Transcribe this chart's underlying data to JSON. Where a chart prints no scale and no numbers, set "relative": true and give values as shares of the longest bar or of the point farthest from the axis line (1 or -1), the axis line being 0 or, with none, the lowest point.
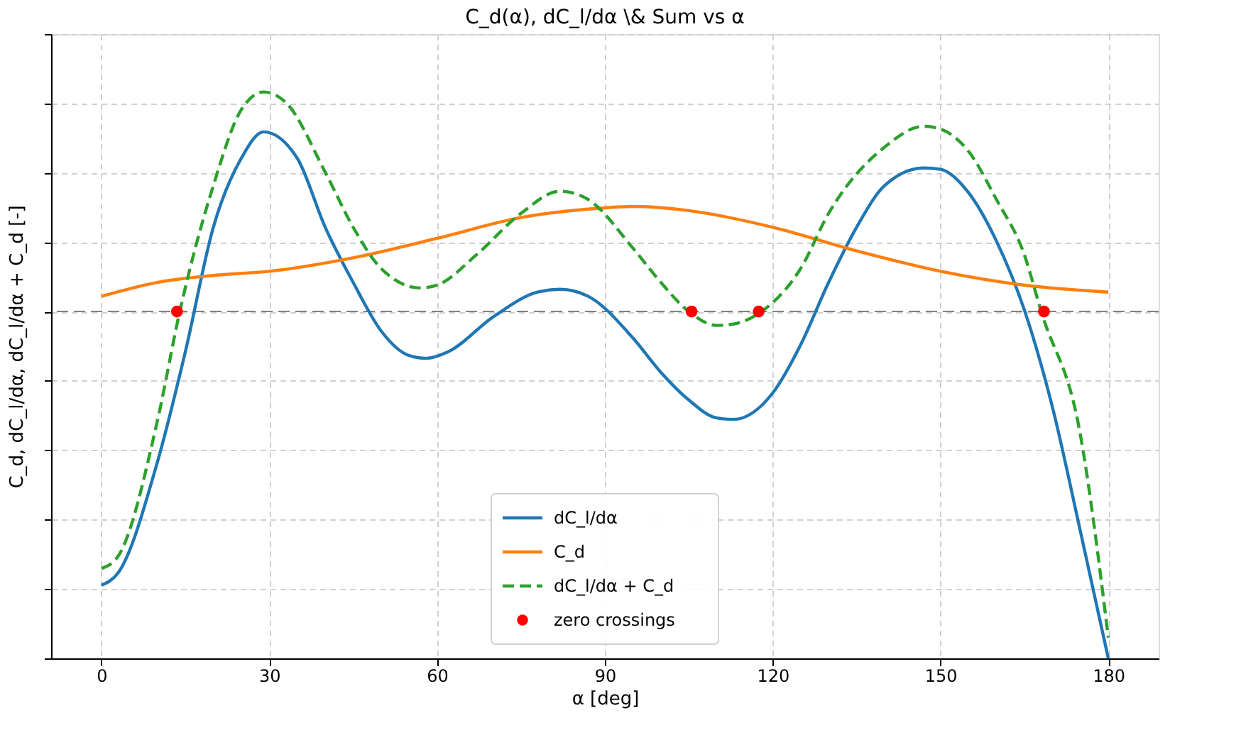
{
  "chart_data": {
    "type": "line",
    "title": "C_d(α), dC_l/dα \\& Sum vs α",
    "xlabel": "α [deg]",
    "ylabel": "C_d, dC_l/dα, dC_l/dα + C_d [-]",
    "relative": true,
    "xlim": [
      -9,
      189
    ],
    "xticks": [
      0,
      30,
      60,
      90,
      120,
      150,
      180
    ],
    "grid": true,
    "legend": "bottom",
    "tick_labels": "x",
    "ref_lines": [
      {
        "axis": "y",
        "value": 0,
        "color": "#808080",
        "line_style": "dashed"
      }
    ],
    "series": [
      {
        "name": "dC_l/dα",
        "color": "#1f77b4",
        "line_style": "solid",
        "x": [
          0,
          3,
          10,
          15,
          20,
          25,
          29,
          35,
          40,
          45,
          50,
          55,
          58,
          62,
          70,
          78,
          82,
          87,
          95,
          100,
          105,
          110,
          113,
          120,
          125,
          130,
          135,
          140,
          147,
          150,
          155,
          160,
          165,
          170,
          175,
          180
        ],
        "values": [
          -0.789,
          -0.753,
          -0.434,
          -0.116,
          0.243,
          0.442,
          0.518,
          0.442,
          0.243,
          0.084,
          -0.056,
          -0.127,
          -0.135,
          -0.116,
          -0.016,
          0.056,
          0.064,
          0.044,
          -0.076,
          -0.175,
          -0.255,
          -0.307,
          -0.311,
          -0.235,
          -0.096,
          0.084,
          0.243,
          0.363,
          0.414,
          0.41,
          0.343,
          0.203,
          0.004,
          -0.275,
          -0.633,
          -1
        ]
      },
      {
        "name": "C_d",
        "color": "#ff7f0e",
        "line_style": "solid",
        "x": [
          0,
          10,
          20,
          30,
          45,
          60,
          75,
          90,
          95,
          105,
          120,
          135,
          150,
          165,
          180
        ],
        "values": [
          0.044,
          0.084,
          0.104,
          0.116,
          0.155,
          0.211,
          0.271,
          0.299,
          0.303,
          0.291,
          0.243,
          0.175,
          0.116,
          0.076,
          0.056
        ]
      },
      {
        "name": "dC_l/dα + C_d",
        "color": "#2ca02c",
        "line_style": "dashed",
        "x": [
          0,
          3,
          10,
          14,
          20,
          25,
          29,
          33,
          40,
          45,
          50,
          57,
          60,
          67,
          75,
          82,
          87,
          95,
          100,
          105,
          110,
          113,
          118,
          125,
          130,
          140,
          147,
          150,
          155,
          160,
          165,
          168,
          175,
          180
        ],
        "values": [
          -0.741,
          -0.705,
          -0.315,
          0,
          0.363,
          0.582,
          0.633,
          0.602,
          0.402,
          0.243,
          0.124,
          0.068,
          0.076,
          0.163,
          0.283,
          0.347,
          0.323,
          0.183,
          0.084,
          0,
          -0.04,
          -0.036,
          0,
          0.124,
          0.283,
          0.474,
          0.534,
          0.526,
          0.462,
          0.323,
          0.163,
          0,
          -0.355,
          -0.94
        ]
      },
      {
        "name": "zero crossings",
        "type": "scatter",
        "color": "#ff0000",
        "marker": "circle",
        "x": [
          13.5,
          105.5,
          117.5,
          168.5
        ],
        "values": [
          0,
          0,
          0,
          0
        ]
      }
    ]
  }
}
